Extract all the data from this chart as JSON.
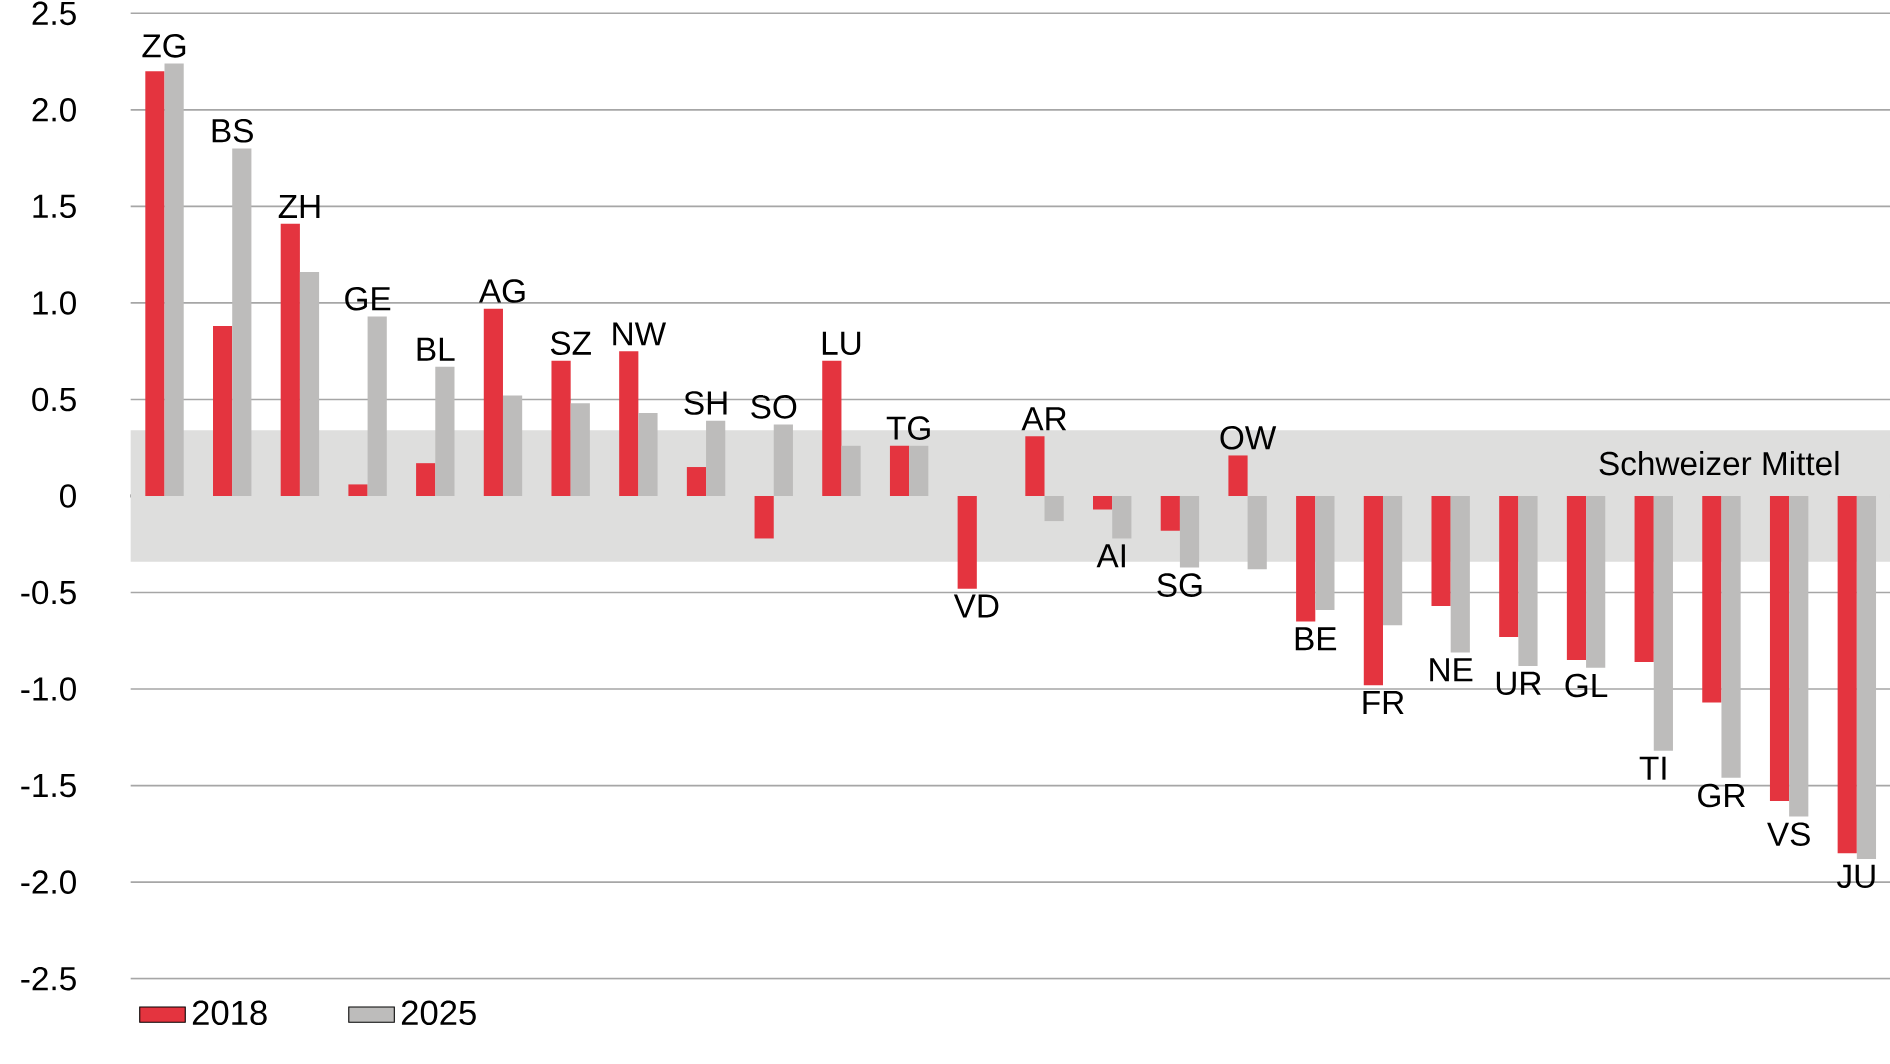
{
  "chart_data": {
    "type": "bar",
    "categories": [
      "ZG",
      "BS",
      "ZH",
      "GE",
      "BL",
      "AG",
      "SZ",
      "NW",
      "SH",
      "SO",
      "LU",
      "TG",
      "VD",
      "AR",
      "AI",
      "SG",
      "OW",
      "BE",
      "FR",
      "NE",
      "UR",
      "GL",
      "TI",
      "GR",
      "VS",
      "JU"
    ],
    "series": [
      {
        "name": "2018",
        "color": "#e4343f",
        "values": [
          2.2,
          0.88,
          1.41,
          0.06,
          0.17,
          0.97,
          0.7,
          0.75,
          0.15,
          -0.22,
          0.7,
          0.26,
          -0.48,
          0.31,
          -0.07,
          -0.18,
          0.21,
          -0.65,
          -0.98,
          -0.57,
          -0.73,
          -0.85,
          -0.86,
          -1.07,
          -1.58,
          -1.85
        ]
      },
      {
        "name": "2025",
        "color": "#bdbcbb",
        "values": [
          2.24,
          1.8,
          1.16,
          0.93,
          0.67,
          0.52,
          0.48,
          0.43,
          0.39,
          0.37,
          0.26,
          0.26,
          null,
          -0.13,
          -0.22,
          -0.37,
          -0.38,
          -0.59,
          -0.67,
          -0.81,
          -0.88,
          -0.89,
          -1.32,
          -1.46,
          -1.66,
          -1.88
        ]
      }
    ],
    "ylim": [
      -2.5,
      2.5
    ],
    "yticks": [
      -2.5,
      {
        "value": -2,
        "label": "-2.0"
      },
      -1.5,
      {
        "value": -1,
        "label": "-1.0"
      },
      -0.5,
      0,
      0.5,
      {
        "value": 1,
        "label": "1.0"
      },
      1.5,
      {
        "value": 2,
        "label": "2.0"
      },
      2.5
    ],
    "grid": "y",
    "bands": [
      {
        "axis": "y",
        "from": -0.34,
        "to": 0.34,
        "label": "Schweizer Mittel",
        "color": "#dededd"
      }
    ],
    "legend": "bottom left"
  }
}
